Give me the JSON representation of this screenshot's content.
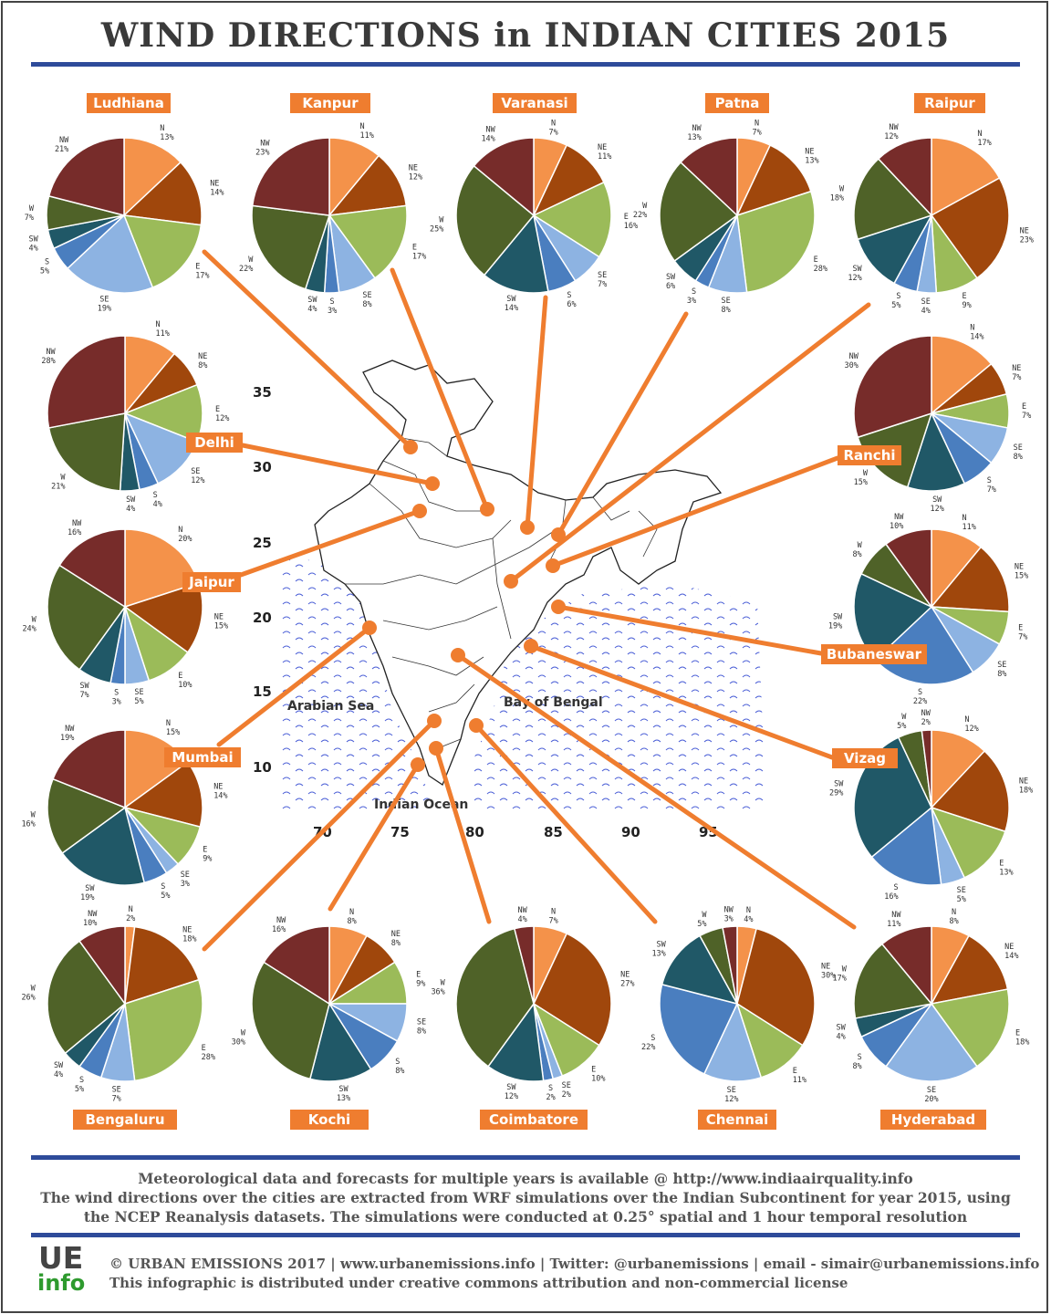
{
  "title": "WIND DIRECTIONS in INDIAN CITIES 2015",
  "colors": {
    "N": "#f4924a",
    "NE": "#a0470c",
    "E": "#9bbb59",
    "SE": "#8db3e2",
    "S": "#4a7ebf",
    "SW": "#205867",
    "W": "#4f6228",
    "NW": "#772c2a",
    "accent": "#ef7d2f",
    "rule": "#2e4b9a"
  },
  "map": {
    "x_ticks": [
      "70",
      "75",
      "80",
      "85",
      "90",
      "95"
    ],
    "y_ticks": [
      "35",
      "30",
      "25",
      "20",
      "15",
      "10"
    ],
    "seas": [
      "Arabian Sea",
      "Bay of Bengal",
      "Indian Ocean"
    ]
  },
  "chart_data": [
    {
      "type": "pie",
      "city": "Ludhiana",
      "categories": [
        "N",
        "NE",
        "E",
        "SE",
        "S",
        "SW",
        "W",
        "NW"
      ],
      "values": [
        13,
        14,
        17,
        19,
        5,
        4,
        7,
        21
      ]
    },
    {
      "type": "pie",
      "city": "Kanpur",
      "categories": [
        "N",
        "NE",
        "E",
        "SE",
        "S",
        "SW",
        "W",
        "NW"
      ],
      "values": [
        11,
        12,
        17,
        8,
        3,
        4,
        22,
        23
      ]
    },
    {
      "type": "pie",
      "city": "Varanasi",
      "categories": [
        "N",
        "NE",
        "E",
        "SE",
        "S",
        "SW",
        "W",
        "NW"
      ],
      "values": [
        7,
        11,
        16,
        7,
        6,
        14,
        25,
        14
      ]
    },
    {
      "type": "pie",
      "city": "Patna",
      "categories": [
        "N",
        "NE",
        "E",
        "SE",
        "S",
        "SW",
        "W",
        "NW"
      ],
      "values": [
        7,
        13,
        28,
        8,
        3,
        6,
        22,
        13
      ]
    },
    {
      "type": "pie",
      "city": "Raipur",
      "categories": [
        "N",
        "NE",
        "E",
        "SE",
        "S",
        "SW",
        "W",
        "NW"
      ],
      "values": [
        17,
        23,
        9,
        4,
        5,
        12,
        18,
        12
      ]
    },
    {
      "type": "pie",
      "city": "Delhi",
      "categories": [
        "N",
        "NE",
        "E",
        "SE",
        "S",
        "SW",
        "W",
        "NW"
      ],
      "values": [
        11,
        8,
        12,
        12,
        4,
        4,
        21,
        28
      ]
    },
    {
      "type": "pie",
      "city": "Ranchi",
      "categories": [
        "N",
        "NE",
        "E",
        "SE",
        "S",
        "SW",
        "W",
        "NW"
      ],
      "values": [
        14,
        7,
        7,
        8,
        7,
        12,
        15,
        30
      ]
    },
    {
      "type": "pie",
      "city": "Jaipur",
      "categories": [
        "N",
        "NE",
        "E",
        "SE",
        "S",
        "SW",
        "W",
        "NW"
      ],
      "values": [
        20,
        15,
        10,
        5,
        3,
        7,
        24,
        16
      ]
    },
    {
      "type": "pie",
      "city": "Bubaneswar",
      "categories": [
        "N",
        "NE",
        "E",
        "SE",
        "S",
        "SW",
        "W",
        "NW"
      ],
      "values": [
        11,
        15,
        7,
        8,
        22,
        19,
        8,
        10
      ]
    },
    {
      "type": "pie",
      "city": "Mumbai",
      "categories": [
        "N",
        "NE",
        "E",
        "SE",
        "S",
        "SW",
        "W",
        "NW"
      ],
      "values": [
        15,
        14,
        9,
        3,
        5,
        19,
        16,
        19
      ]
    },
    {
      "type": "pie",
      "city": "Vizag",
      "categories": [
        "N",
        "NE",
        "E",
        "SE",
        "S",
        "SW",
        "W",
        "NW"
      ],
      "values": [
        12,
        18,
        13,
        5,
        16,
        29,
        5,
        2
      ]
    },
    {
      "type": "pie",
      "city": "Bengaluru",
      "categories": [
        "N",
        "NE",
        "E",
        "SE",
        "S",
        "SW",
        "W",
        "NW"
      ],
      "values": [
        2,
        18,
        28,
        7,
        5,
        4,
        26,
        10
      ]
    },
    {
      "type": "pie",
      "city": "Kochi",
      "categories": [
        "N",
        "NE",
        "E",
        "SE",
        "S",
        "SW",
        "W",
        "NW"
      ],
      "values": [
        8,
        8,
        9,
        8,
        8,
        13,
        30,
        16
      ]
    },
    {
      "type": "pie",
      "city": "Coimbatore",
      "categories": [
        "N",
        "NE",
        "E",
        "SE",
        "S",
        "SW",
        "W",
        "NW"
      ],
      "values": [
        7,
        27,
        10,
        2,
        2,
        12,
        36,
        4
      ],
      "value_labels": [
        "7%",
        "27%",
        "10%",
        "2%",
        "2%",
        "12%",
        "36%",
        "4%"
      ]
    },
    {
      "type": "pie",
      "city": "Chennai",
      "categories": [
        "N",
        "NE",
        "E",
        "SE",
        "S",
        "SW",
        "W",
        "NW"
      ],
      "values": [
        4,
        30,
        11,
        12,
        22,
        13,
        5,
        3
      ]
    },
    {
      "type": "pie",
      "city": "Hyderabad",
      "categories": [
        "N",
        "NE",
        "E",
        "SE",
        "S",
        "SW",
        "W",
        "NW"
      ],
      "values": [
        8,
        14,
        18,
        20,
        8,
        4,
        17,
        11
      ]
    }
  ],
  "footer": {
    "line1": "Meteorological data and forecasts for multiple years is available @ http://www.indiaairquality.info",
    "line2": "The wind directions over the cities are extracted from WRF simulations over the Indian Subcontinent for year 2015, using",
    "line3": "the NCEP Reanalysis datasets. The simulations were conducted at 0.25° spatial and 1 hour temporal resolution",
    "credit1": "© URBAN EMISSIONS 2017 | www.urbanemissions.info | Twitter: @urbanemissions | email - simair@urbanemissions.info",
    "credit2": "This infographic is distributed under creative commons attribution and non-commercial license",
    "logo_top": "UE",
    "logo_bottom": "info"
  }
}
